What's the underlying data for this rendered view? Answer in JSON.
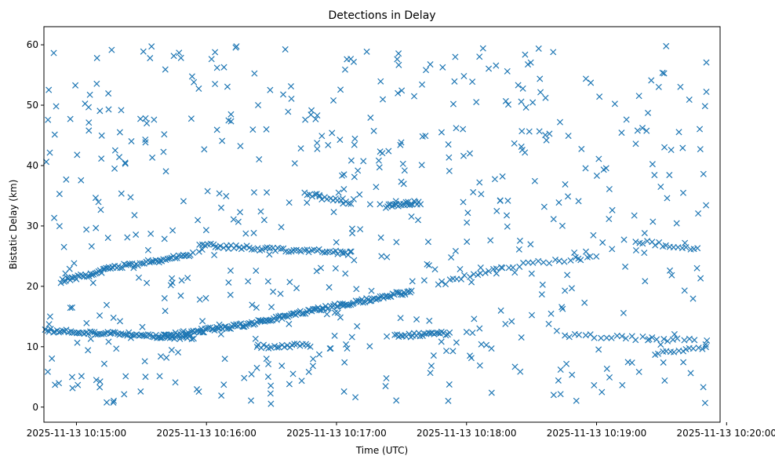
{
  "chart_data": {
    "type": "scatter",
    "title": "Detections in Delay",
    "xlabel": "Time (UTC)",
    "ylabel": "Bistatic Delay (km)",
    "marker": "x",
    "color": "#1f77b4",
    "x_unit": "minutes after 2025-11-13 10:15:00",
    "xlim": [
      -0.25,
      4.95
    ],
    "ylim": [
      -2.5,
      63
    ],
    "x_ticks": [
      {
        "value": 0,
        "label": "2025-11-13 10:15:00"
      },
      {
        "value": 1,
        "label": "2025-11-13 10:16:00"
      },
      {
        "value": 2,
        "label": "2025-11-13 10:17:00"
      },
      {
        "value": 3,
        "label": "2025-11-13 10:18:00"
      },
      {
        "value": 4,
        "label": "2025-11-13 10:19:00"
      },
      {
        "value": 5,
        "label": "2025-11-13 10:20:00"
      }
    ],
    "y_ticks": [
      {
        "value": 0,
        "label": "0"
      },
      {
        "value": 10,
        "label": "10"
      },
      {
        "value": 20,
        "label": "20"
      },
      {
        "value": 30,
        "label": "30"
      },
      {
        "value": 40,
        "label": "40"
      },
      {
        "value": 50,
        "label": "50"
      },
      {
        "value": 60,
        "label": "60"
      }
    ],
    "track_segments": [
      {
        "name": "track-low-12",
        "x0": -0.24,
        "x1": 0.9,
        "y0": 12.7,
        "y1": 11.5,
        "step": 0.015
      },
      {
        "name": "track-rising-a",
        "x0": 0.62,
        "x1": 1.28,
        "y0": 11.6,
        "y1": 13.6,
        "step": 0.012
      },
      {
        "name": "track-rising-b",
        "x0": 1.28,
        "x1": 2.05,
        "y0": 13.6,
        "y1": 17.0,
        "step": 0.012
      },
      {
        "name": "track-rising-c",
        "x0": 2.05,
        "x1": 2.58,
        "y0": 17.0,
        "y1": 19.2,
        "step": 0.012
      },
      {
        "name": "track-upper-21",
        "x0": -0.12,
        "x1": 0.28,
        "y0": 20.8,
        "y1": 23.0,
        "step": 0.012
      },
      {
        "name": "track-upper-23",
        "x0": 0.28,
        "x1": 0.9,
        "y0": 23.0,
        "y1": 25.4,
        "step": 0.015
      },
      {
        "name": "track-26",
        "x0": 0.95,
        "x1": 2.12,
        "y0": 26.8,
        "y1": 25.5,
        "step": 0.02
      },
      {
        "name": "track-33",
        "x0": 1.75,
        "x1": 2.12,
        "y0": 35.5,
        "y1": 33.5,
        "step": 0.02
      },
      {
        "name": "track-33b",
        "x0": 2.38,
        "x1": 2.65,
        "y0": 33.3,
        "y1": 33.9,
        "step": 0.012
      },
      {
        "name": "track-12b",
        "x0": 2.45,
        "x1": 2.88,
        "y0": 11.8,
        "y1": 12.2,
        "step": 0.015
      },
      {
        "name": "track-10",
        "x0": 1.4,
        "x1": 1.78,
        "y0": 10.0,
        "y1": 10.3,
        "step": 0.02
      },
      {
        "name": "track-20-23",
        "x0": 2.78,
        "x1": 3.28,
        "y0": 20.3,
        "y1": 23.2,
        "step": 0.03
      },
      {
        "name": "track-23-24",
        "x0": 3.28,
        "x1": 4.0,
        "y0": 23.2,
        "y1": 25.0,
        "step": 0.04
      },
      {
        "name": "track-12c",
        "x0": 3.75,
        "x1": 4.75,
        "y0": 12.0,
        "y1": 11.0,
        "step": 0.04
      },
      {
        "name": "track-27",
        "x0": 4.3,
        "x1": 4.8,
        "y0": 27.5,
        "y1": 26.0,
        "step": 0.03
      },
      {
        "name": "track-9",
        "x0": 4.45,
        "x1": 4.85,
        "y0": 9.0,
        "y1": 9.8,
        "step": 0.03
      }
    ],
    "scatter_noise": {
      "count": 560,
      "x_range": [
        -0.24,
        4.85
      ],
      "y_range": [
        0.5,
        59.8
      ],
      "seed": 13,
      "note": "uniformly scattered detections across the full delay range"
    }
  }
}
